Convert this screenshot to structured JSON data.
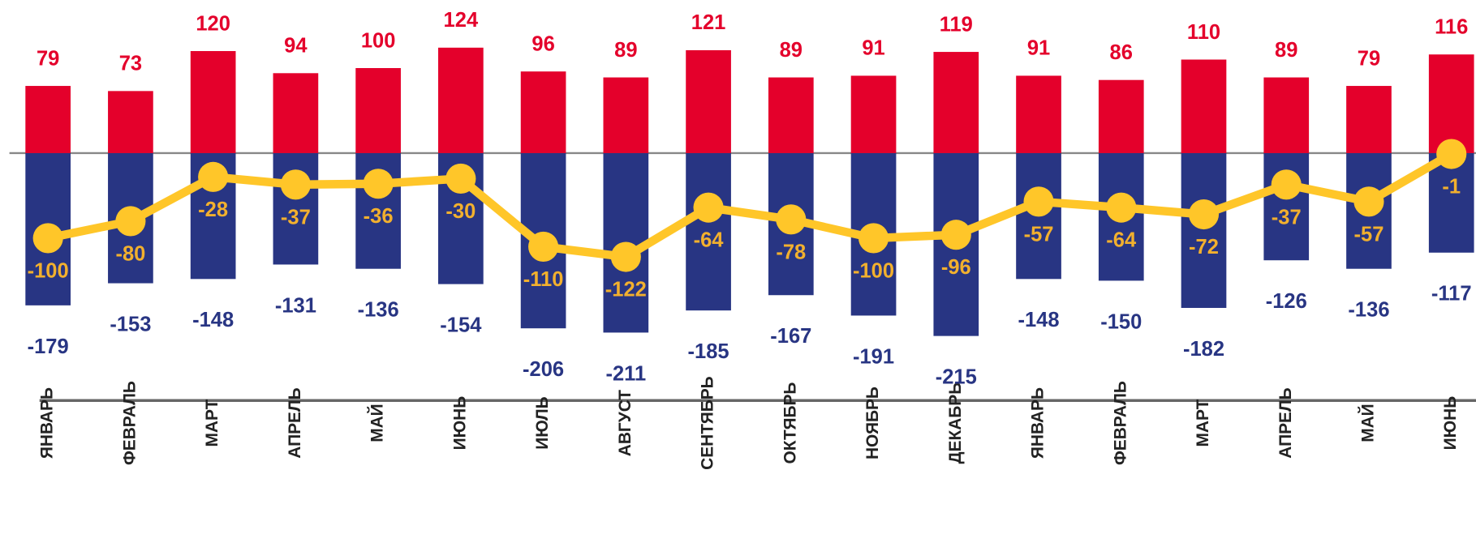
{
  "chart_data": {
    "type": "bar",
    "categories": [
      "ЯНВАРЬ",
      "ФЕВРАЛЬ",
      "МАРТ",
      "АПРЕЛЬ",
      "МАЙ",
      "ИЮНЬ",
      "ИЮЛЬ",
      "АВГУСТ",
      "СЕНТЯБРЬ",
      "ОКТЯБРЬ",
      "НОЯБРЬ",
      "ДЕКАБРЬ",
      "ЯНВАРЬ",
      "ФЕВРАЛЬ",
      "МАРТ",
      "АПРЕЛЬ",
      "МАЙ",
      "ИЮНЬ"
    ],
    "series": [
      {
        "type": "bar",
        "color": "#e4002b",
        "values": [
          79,
          73,
          120,
          94,
          100,
          124,
          96,
          89,
          121,
          89,
          91,
          119,
          91,
          86,
          110,
          89,
          79,
          116
        ]
      },
      {
        "type": "bar",
        "color": "#283583",
        "values": [
          -179,
          -153,
          -148,
          -131,
          -136,
          -154,
          -206,
          -211,
          -185,
          -167,
          -191,
          -215,
          -148,
          -150,
          -182,
          -126,
          -136,
          -117
        ]
      },
      {
        "type": "line",
        "color": "#ffc629",
        "label_color": "#f2b02e",
        "values": [
          -100,
          -80,
          -28,
          -37,
          -36,
          -30,
          -110,
          -122,
          -64,
          -78,
          -100,
          -96,
          -57,
          -64,
          -72,
          -37,
          -57,
          -1
        ]
      }
    ],
    "ylim": [
      -240,
      180
    ]
  }
}
